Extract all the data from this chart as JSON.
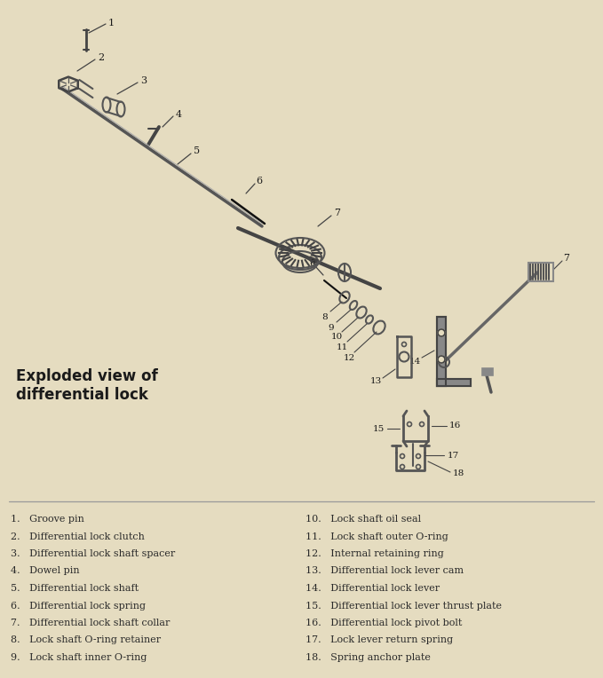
{
  "bg_color": "#e5dcc0",
  "title_line1": "Exploded view of",
  "title_line2": "differential lock",
  "title_fontsize": 12,
  "text_color": "#1a1a1a",
  "legend_color": "#2a2a2a",
  "fig_w": 6.79,
  "fig_h": 7.64,
  "dpi": 100,
  "items_left": [
    "1.   Groove pin",
    "2.   Differential lock clutch",
    "3.   Differential lock shaft spacer",
    "4.   Dowel pin",
    "5.   Differential lock shaft",
    "6.   Differential lock spring",
    "7.   Differential lock shaft collar",
    "8.   Lock shaft O-ring retainer",
    "9.   Lock shaft inner O-ring"
  ],
  "items_right": [
    "10.   Lock shaft oil seal",
    "11.   Lock shaft outer O-ring",
    "12.   Internal retaining ring",
    "13.   Differential lock lever cam",
    "14.   Differential lock lever",
    "15.   Differential lock lever thrust plate",
    "16.   Differential lock pivot bolt",
    "17.   Lock lever return spring",
    "18.   Spring anchor plate"
  ]
}
